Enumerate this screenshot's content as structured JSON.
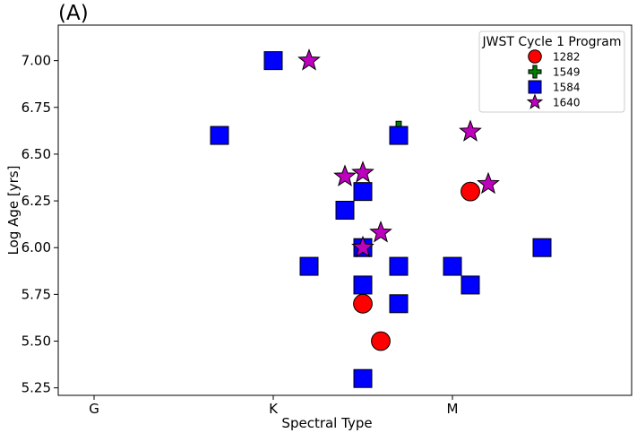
{
  "panel_label": "(A)",
  "chart_data": {
    "type": "scatter",
    "title": "",
    "xlabel": "Spectral Type",
    "ylabel": "Log Age [yrs]",
    "x_ticks": [
      {
        "value": 0,
        "label": "G"
      },
      {
        "value": 10,
        "label": "K"
      },
      {
        "value": 20,
        "label": "M"
      }
    ],
    "xlim": [
      -2,
      30
    ],
    "ylim": [
      5.21,
      7.19
    ],
    "y_ticks": [
      5.25,
      5.5,
      5.75,
      6.0,
      6.25,
      6.5,
      6.75,
      7.0
    ],
    "y_tick_labels": [
      "5.25",
      "5.50",
      "5.75",
      "6.00",
      "6.25",
      "6.50",
      "6.75",
      "7.00"
    ],
    "grid": false,
    "legend": {
      "title": "JWST Cycle 1 Program",
      "placement": "top-right"
    },
    "series": [
      {
        "name": "1282",
        "marker": "circle",
        "color": "#ff0000",
        "points": [
          {
            "x": 15,
            "y": 5.7
          },
          {
            "x": 16,
            "y": 5.5
          },
          {
            "x": 21,
            "y": 6.3
          }
        ]
      },
      {
        "name": "1549",
        "marker": "plus",
        "color": "#008000",
        "points": [
          {
            "x": 17,
            "y": 6.63
          },
          {
            "x": 20,
            "y": 5.9
          }
        ]
      },
      {
        "name": "1584",
        "marker": "square",
        "color": "#0000ff",
        "points": [
          {
            "x": 7,
            "y": 6.6
          },
          {
            "x": 10,
            "y": 7.0
          },
          {
            "x": 12,
            "y": 5.9
          },
          {
            "x": 14,
            "y": 6.2
          },
          {
            "x": 15,
            "y": 6.3
          },
          {
            "x": 15,
            "y": 6.0
          },
          {
            "x": 15,
            "y": 5.8
          },
          {
            "x": 15,
            "y": 5.3
          },
          {
            "x": 17,
            "y": 6.6
          },
          {
            "x": 17,
            "y": 5.9
          },
          {
            "x": 17,
            "y": 5.7
          },
          {
            "x": 20,
            "y": 5.9
          },
          {
            "x": 21,
            "y": 5.8
          },
          {
            "x": 25,
            "y": 6.0
          }
        ]
      },
      {
        "name": "1640",
        "marker": "star",
        "color": "#bf00bf",
        "points": [
          {
            "x": 12,
            "y": 7.0
          },
          {
            "x": 14,
            "y": 6.38
          },
          {
            "x": 15,
            "y": 6.4
          },
          {
            "x": 15,
            "y": 6.0
          },
          {
            "x": 16,
            "y": 6.08
          },
          {
            "x": 21,
            "y": 6.62
          },
          {
            "x": 22,
            "y": 6.34
          }
        ]
      }
    ]
  }
}
